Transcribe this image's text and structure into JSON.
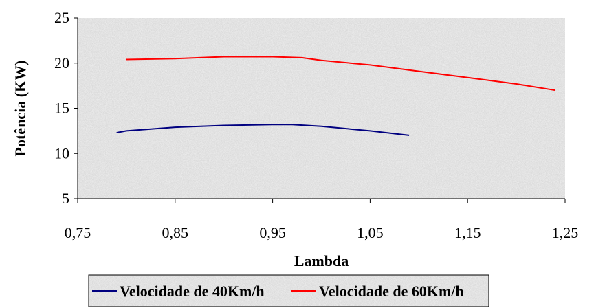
{
  "chart_data": {
    "type": "line",
    "title": "",
    "xlabel": "Lambda",
    "ylabel": "Potência (KW)",
    "xlim": [
      0.75,
      1.25
    ],
    "ylim": [
      5,
      25
    ],
    "x_ticks": [
      0.75,
      0.85,
      0.95,
      1.05,
      1.15,
      1.25
    ],
    "x_tick_labels": [
      "0,75",
      "0,85",
      "0,95",
      "1,05",
      "1,15",
      "1,25"
    ],
    "y_ticks": [
      5,
      10,
      15,
      20,
      25
    ],
    "y_tick_labels": [
      "5",
      "10",
      "15",
      "20",
      "25"
    ],
    "grid": false,
    "legend_position": "bottom",
    "series": [
      {
        "name": "Velocidade de 40Km/h",
        "color": "#000080",
        "x": [
          0.79,
          0.8,
          0.85,
          0.9,
          0.95,
          0.97,
          1.0,
          1.05,
          1.09
        ],
        "y": [
          12.3,
          12.5,
          12.9,
          13.1,
          13.2,
          13.2,
          13.0,
          12.5,
          12.0
        ]
      },
      {
        "name": "Velocidade de 60Km/h",
        "color": "#ff0000",
        "x": [
          0.8,
          0.85,
          0.9,
          0.95,
          0.98,
          1.0,
          1.05,
          1.1,
          1.15,
          1.2,
          1.24
        ],
        "y": [
          20.4,
          20.5,
          20.7,
          20.7,
          20.6,
          20.3,
          19.8,
          19.1,
          18.4,
          17.7,
          17.0
        ]
      }
    ]
  },
  "colors": {
    "plot_background": "#d9d9d9",
    "axis": "#000000"
  }
}
